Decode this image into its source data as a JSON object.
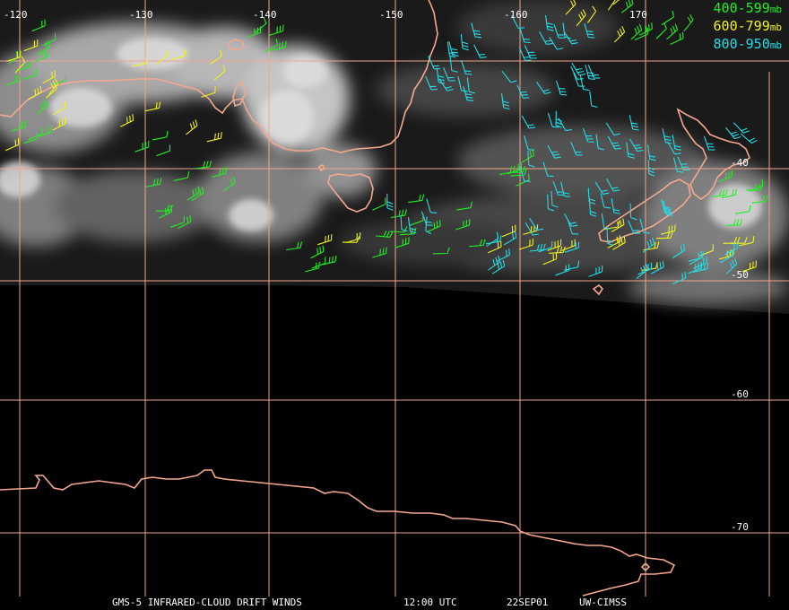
{
  "map": {
    "lon_labels": [
      {
        "text": "-120",
        "lon": -120
      },
      {
        "text": "-130",
        "lon": -130
      },
      {
        "text": "-140",
        "lon": -140
      },
      {
        "text": "-150",
        "lon": -150
      },
      {
        "text": "-160",
        "lon": -160
      },
      {
        "text": "170",
        "lon": 170
      }
    ],
    "lat_labels": [
      {
        "text": "-40",
        "lat": -40
      },
      {
        "text": "-50",
        "lat": -50
      },
      {
        "text": "-60",
        "lat": -60
      },
      {
        "text": "-70",
        "lat": -70
      }
    ],
    "colors": {
      "grid": "#f3a58a",
      "coast": "#f4a88e",
      "layer_400_599": "#22ee22",
      "layer_600_799": "#f2f21a",
      "layer_800_950": "#22dde8"
    }
  },
  "legend": [
    {
      "range": "400-599",
      "unit": "mb",
      "color": "#22ee22"
    },
    {
      "range": "600-799",
      "unit": "mb",
      "color": "#f2f21a"
    },
    {
      "range": "800-950",
      "unit": "mb",
      "color": "#22dde8"
    }
  ],
  "footer": {
    "product": "GMS-5 INFRARED-CLOUD DRIFT WINDS",
    "time": "12:00 UTC",
    "date": "22SEP01",
    "source": "UW-CIMSS"
  }
}
